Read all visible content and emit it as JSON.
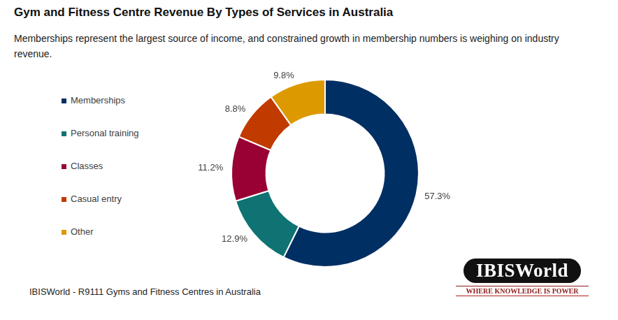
{
  "chart_data": {
    "type": "doughnut",
    "title": "Gym and Fitness Centre Revenue By Types of Services in Australia",
    "subtitle": "Memberships represent the largest source of income, and constrained growth in membership numbers is weighing on industry revenue.",
    "categories": [
      "Memberships",
      "Personal training",
      "Classes",
      "Casual entry",
      "Other"
    ],
    "values": [
      57.3,
      12.9,
      11.2,
      8.8,
      9.8
    ],
    "value_labels": [
      "57.3%",
      "12.9%",
      "11.2%",
      "8.8%",
      "9.8%"
    ],
    "colors": [
      "#002f63",
      "#0e7372",
      "#990033",
      "#c13a00",
      "#dc9a00"
    ],
    "legend": "left",
    "data_labels": true
  },
  "source": "IBISWorld - R9111 Gyms and Fitness Centres in Australia",
  "logo": {
    "name": "IBISWorld",
    "tagline": "WHERE KNOWLEDGE IS POWER"
  }
}
